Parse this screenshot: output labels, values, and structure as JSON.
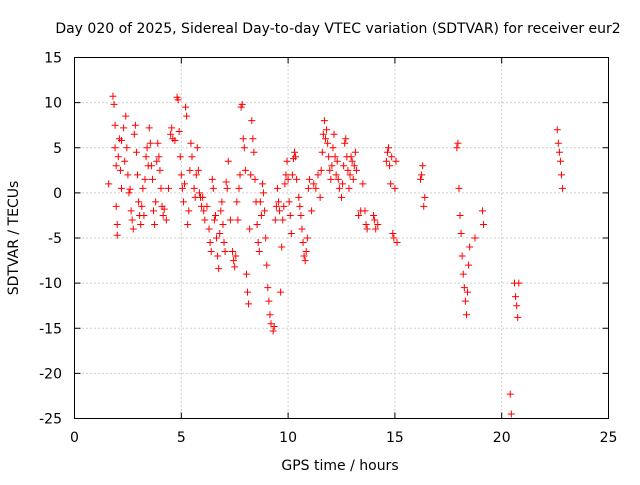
{
  "chart_data": {
    "type": "scatter",
    "title": "Day 020 of 2025, Sidereal Day-to-day VTEC variation (SDTVAR) for receiver eur2",
    "xlabel": "GPS time / hours",
    "ylabel": "SDTVAR / TECUs",
    "xlim": [
      0,
      25
    ],
    "ylim": [
      -25,
      15
    ],
    "xticks": [
      0,
      5,
      10,
      15,
      20,
      25
    ],
    "yticks": [
      -25,
      -20,
      -15,
      -10,
      -5,
      0,
      5,
      10,
      15
    ],
    "xtick_labels": [
      "0",
      "5",
      "10",
      "15",
      "20",
      "25"
    ],
    "ytick_labels": [
      "-25",
      "-20",
      "-15",
      "-10",
      "-5",
      "0",
      "5",
      "10",
      "15"
    ],
    "grid": true,
    "marker": "plus",
    "color": "#ff0000",
    "series": [
      {
        "name": "eur2",
        "points": [
          [
            1.6,
            1.0
          ],
          [
            1.8,
            10.7
          ],
          [
            1.85,
            9.8
          ],
          [
            1.9,
            7.5
          ],
          [
            1.9,
            5.0
          ],
          [
            1.95,
            3.0
          ],
          [
            1.95,
            -1.5
          ],
          [
            2.0,
            -3.5
          ],
          [
            2.0,
            -4.7
          ],
          [
            2.05,
            4.0
          ],
          [
            2.1,
            6.0
          ],
          [
            2.15,
            2.5
          ],
          [
            2.2,
            0.5
          ],
          [
            2.2,
            5.8
          ],
          [
            2.3,
            7.2
          ],
          [
            2.35,
            3.5
          ],
          [
            2.4,
            8.5
          ],
          [
            2.45,
            5.0
          ],
          [
            2.5,
            2.0
          ],
          [
            2.55,
            0.0
          ],
          [
            2.6,
            0.4
          ],
          [
            2.65,
            -2.0
          ],
          [
            2.7,
            -3.0
          ],
          [
            2.75,
            -4.0
          ],
          [
            2.8,
            6.5
          ],
          [
            2.85,
            7.5
          ],
          [
            2.9,
            4.5
          ],
          [
            2.95,
            2.0
          ],
          [
            3.0,
            -1.0
          ],
          [
            3.05,
            -2.5
          ],
          [
            3.1,
            -3.5
          ],
          [
            3.15,
            -1.5
          ],
          [
            3.2,
            0.5
          ],
          [
            3.25,
            -2.5
          ],
          [
            3.3,
            1.5
          ],
          [
            3.35,
            4.0
          ],
          [
            3.4,
            5.0
          ],
          [
            3.45,
            3.0
          ],
          [
            3.5,
            7.2
          ],
          [
            3.55,
            5.5
          ],
          [
            3.6,
            3.0
          ],
          [
            3.65,
            1.5
          ],
          [
            3.7,
            -2.0
          ],
          [
            3.75,
            -3.5
          ],
          [
            3.8,
            -1.0
          ],
          [
            3.85,
            3.5
          ],
          [
            3.9,
            5.5
          ],
          [
            3.95,
            4.0
          ],
          [
            4.0,
            2.5
          ],
          [
            4.05,
            0.5
          ],
          [
            4.1,
            -1.5
          ],
          [
            4.15,
            -2.5
          ],
          [
            4.2,
            -1.8
          ],
          [
            4.3,
            -3.0
          ],
          [
            4.4,
            0.5
          ],
          [
            4.5,
            6.5
          ],
          [
            4.55,
            7.2
          ],
          [
            4.6,
            6.0
          ],
          [
            4.7,
            5.8
          ],
          [
            4.8,
            10.6
          ],
          [
            4.85,
            10.3
          ],
          [
            4.9,
            6.8
          ],
          [
            4.95,
            4.0
          ],
          [
            5.0,
            2.0
          ],
          [
            5.05,
            0.5
          ],
          [
            5.1,
            -1.0
          ],
          [
            5.15,
            1.0
          ],
          [
            5.2,
            9.5
          ],
          [
            5.25,
            8.5
          ],
          [
            5.3,
            -3.5
          ],
          [
            5.35,
            -2.0
          ],
          [
            5.4,
            2.5
          ],
          [
            5.45,
            5.5
          ],
          [
            5.5,
            4.0
          ],
          [
            5.6,
            0.5
          ],
          [
            5.65,
            -0.5
          ],
          [
            5.7,
            2.0
          ],
          [
            5.75,
            5.0
          ],
          [
            5.8,
            2.5
          ],
          [
            5.85,
            0.0
          ],
          [
            5.9,
            -0.5
          ],
          [
            5.95,
            -1.5
          ],
          [
            6.0,
            -0.5
          ],
          [
            6.05,
            -2.0
          ],
          [
            6.1,
            -3.0
          ],
          [
            6.2,
            -1.5
          ],
          [
            6.3,
            -4.0
          ],
          [
            6.35,
            -5.5
          ],
          [
            6.4,
            -6.5
          ],
          [
            6.45,
            1.5
          ],
          [
            6.5,
            0.5
          ],
          [
            6.55,
            -3.0
          ],
          [
            6.6,
            -2.5
          ],
          [
            6.65,
            -5.0
          ],
          [
            6.7,
            -7.0
          ],
          [
            6.75,
            -8.4
          ],
          [
            6.8,
            -4.5
          ],
          [
            6.85,
            -2.0
          ],
          [
            6.9,
            -1.0
          ],
          [
            6.95,
            -3.5
          ],
          [
            7.0,
            -5.5
          ],
          [
            7.05,
            -6.5
          ],
          [
            7.1,
            1.2
          ],
          [
            7.15,
            0.5
          ],
          [
            7.2,
            3.5
          ],
          [
            7.3,
            -3.0
          ],
          [
            7.4,
            -6.5
          ],
          [
            7.45,
            -7.5
          ],
          [
            7.5,
            -8.2
          ],
          [
            7.55,
            -7.0
          ],
          [
            7.6,
            -1.0
          ],
          [
            7.65,
            -3.0
          ],
          [
            7.7,
            0.5
          ],
          [
            7.75,
            2.0
          ],
          [
            7.8,
            9.5
          ],
          [
            7.85,
            9.8
          ],
          [
            7.9,
            6.0
          ],
          [
            7.95,
            5.0
          ],
          [
            8.0,
            2.5
          ],
          [
            8.05,
            -9.0
          ],
          [
            8.1,
            -11.0
          ],
          [
            8.15,
            -12.3
          ],
          [
            8.2,
            -4.0
          ],
          [
            8.25,
            2.0
          ],
          [
            8.3,
            8.0
          ],
          [
            8.35,
            6.0
          ],
          [
            8.4,
            4.5
          ],
          [
            8.45,
            1.5
          ],
          [
            8.5,
            -1.0
          ],
          [
            8.55,
            -3.5
          ],
          [
            8.6,
            -5.5
          ],
          [
            8.65,
            -6.5
          ],
          [
            8.7,
            -1.0
          ],
          [
            8.75,
            -2.5
          ],
          [
            8.8,
            1.0
          ],
          [
            8.85,
            0.0
          ],
          [
            8.9,
            -2.0
          ],
          [
            8.95,
            -5.0
          ],
          [
            9.0,
            -8.0
          ],
          [
            9.05,
            -10.5
          ],
          [
            9.1,
            -12.0
          ],
          [
            9.15,
            -13.5
          ],
          [
            9.2,
            -14.5
          ],
          [
            9.3,
            -15.3
          ],
          [
            9.35,
            -14.8
          ],
          [
            9.4,
            -3.0
          ],
          [
            9.45,
            -1.5
          ],
          [
            9.5,
            0.5
          ],
          [
            9.55,
            -1.0
          ],
          [
            9.6,
            -2.0
          ],
          [
            9.65,
            -11.0
          ],
          [
            9.7,
            -6.0
          ],
          [
            9.75,
            -3.0
          ],
          [
            9.8,
            -1.5
          ],
          [
            9.85,
            1.0
          ],
          [
            9.9,
            2.0
          ],
          [
            9.95,
            3.5
          ],
          [
            10.0,
            1.5
          ],
          [
            10.05,
            -1.0
          ],
          [
            10.1,
            -2.5
          ],
          [
            10.15,
            -4.5
          ],
          [
            10.2,
            2.0
          ],
          [
            10.25,
            3.8
          ],
          [
            10.3,
            4.5
          ],
          [
            10.35,
            4.0
          ],
          [
            10.4,
            1.5
          ],
          [
            10.5,
            -0.5
          ],
          [
            10.55,
            -1.5
          ],
          [
            10.6,
            -2.5
          ],
          [
            10.65,
            -4.0
          ],
          [
            10.7,
            -5.5
          ],
          [
            10.75,
            -7.0
          ],
          [
            10.8,
            -7.5
          ],
          [
            10.85,
            -6.5
          ],
          [
            10.9,
            -5.0
          ],
          [
            10.95,
            0.5
          ],
          [
            11.0,
            1.5
          ],
          [
            11.1,
            -2.0
          ],
          [
            11.2,
            1.0
          ],
          [
            11.3,
            0.5
          ],
          [
            11.4,
            2.0
          ],
          [
            11.5,
            -0.5
          ],
          [
            11.55,
            2.5
          ],
          [
            11.6,
            4.5
          ],
          [
            11.65,
            6.5
          ],
          [
            11.7,
            8.0
          ],
          [
            11.75,
            6.0
          ],
          [
            11.8,
            7.0
          ],
          [
            11.85,
            5.5
          ],
          [
            11.9,
            4.0
          ],
          [
            11.95,
            2.5
          ],
          [
            12.0,
            1.5
          ],
          [
            12.05,
            3.0
          ],
          [
            12.1,
            5.0
          ],
          [
            12.15,
            6.5
          ],
          [
            12.2,
            4.0
          ],
          [
            12.25,
            2.0
          ],
          [
            12.3,
            3.5
          ],
          [
            12.35,
            1.5
          ],
          [
            12.4,
            0.5
          ],
          [
            12.5,
            -0.5
          ],
          [
            12.55,
            1.0
          ],
          [
            12.6,
            3.0
          ],
          [
            12.65,
            5.5
          ],
          [
            12.7,
            6.0
          ],
          [
            12.75,
            4.0
          ],
          [
            12.8,
            2.5
          ],
          [
            12.85,
            0.5
          ],
          [
            12.9,
            2.0
          ],
          [
            12.95,
            4.0
          ],
          [
            13.0,
            3.5
          ],
          [
            13.05,
            1.5
          ],
          [
            13.1,
            3.0
          ],
          [
            13.15,
            4.5
          ],
          [
            13.2,
            2.5
          ],
          [
            13.3,
            -2.5
          ],
          [
            13.4,
            -2.0
          ],
          [
            13.5,
            1.0
          ],
          [
            13.6,
            -2.0
          ],
          [
            13.65,
            -3.5
          ],
          [
            13.7,
            -4.0
          ],
          [
            14.0,
            -2.5
          ],
          [
            14.05,
            -3.0
          ],
          [
            14.1,
            -4.0
          ],
          [
            14.2,
            -3.5
          ],
          [
            14.6,
            3.5
          ],
          [
            14.65,
            4.5
          ],
          [
            14.7,
            5.0
          ],
          [
            14.75,
            3.0
          ],
          [
            14.8,
            1.0
          ],
          [
            14.85,
            4.0
          ],
          [
            14.9,
            -4.5
          ],
          [
            14.95,
            -5.0
          ],
          [
            15.0,
            0.5
          ],
          [
            15.05,
            3.5
          ],
          [
            15.1,
            -5.5
          ],
          [
            16.2,
            1.5
          ],
          [
            16.25,
            2.0
          ],
          [
            16.3,
            3.0
          ],
          [
            16.35,
            -1.5
          ],
          [
            16.4,
            -0.5
          ],
          [
            17.9,
            5.0
          ],
          [
            17.95,
            5.5
          ],
          [
            18.0,
            0.5
          ],
          [
            18.05,
            -2.5
          ],
          [
            18.1,
            -4.5
          ],
          [
            18.15,
            -7.0
          ],
          [
            18.2,
            -9.0
          ],
          [
            18.25,
            -10.5
          ],
          [
            18.3,
            -12.0
          ],
          [
            18.35,
            -13.5
          ],
          [
            18.4,
            -11.0
          ],
          [
            18.45,
            -8.0
          ],
          [
            18.5,
            -6.0
          ],
          [
            18.75,
            -5.0
          ],
          [
            19.1,
            -2.0
          ],
          [
            19.15,
            -3.5
          ],
          [
            20.4,
            -22.3
          ],
          [
            20.45,
            -24.5
          ],
          [
            20.6,
            -10.0
          ],
          [
            20.65,
            -11.5
          ],
          [
            20.7,
            -12.5
          ],
          [
            20.75,
            -13.8
          ],
          [
            20.8,
            -10.0
          ],
          [
            22.6,
            7.0
          ],
          [
            22.65,
            5.5
          ],
          [
            22.7,
            4.5
          ],
          [
            22.75,
            3.5
          ],
          [
            22.8,
            2.0
          ],
          [
            22.85,
            0.5
          ]
        ]
      }
    ]
  }
}
